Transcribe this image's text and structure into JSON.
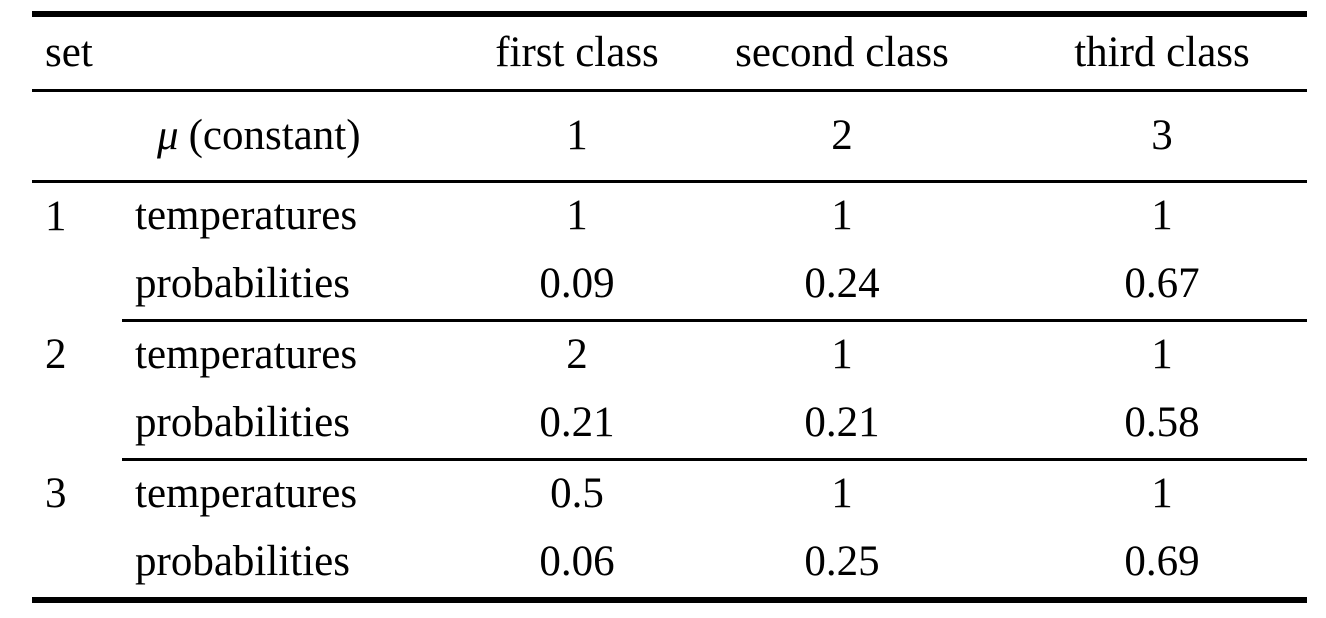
{
  "table": {
    "header": {
      "set": "set",
      "col2": "",
      "first_class": "first class",
      "second_class": "second class",
      "third_class": "third class"
    },
    "mu_row": {
      "symbol": "μ",
      "label": "(constant)",
      "values": [
        "1",
        "2",
        "3"
      ]
    },
    "row_labels": {
      "temperatures": "temperatures",
      "probabilities": "probabilities"
    },
    "sets": [
      {
        "id": "1",
        "temperatures": [
          "1",
          "1",
          "1"
        ],
        "probabilities": [
          "0.09",
          "0.24",
          "0.67"
        ]
      },
      {
        "id": "2",
        "temperatures": [
          "2",
          "1",
          "1"
        ],
        "probabilities": [
          "0.21",
          "0.21",
          "0.58"
        ]
      },
      {
        "id": "3",
        "temperatures": [
          "0.5",
          "1",
          "1"
        ],
        "probabilities": [
          "0.06",
          "0.25",
          "0.69"
        ]
      }
    ]
  },
  "colors": {
    "rule": "#000000",
    "text": "#000000",
    "background": "#ffffff"
  },
  "chart_data": {
    "type": "table",
    "columns": [
      "set",
      "",
      "first class",
      "second class",
      "third class"
    ],
    "rows": [
      [
        "",
        "μ (constant)",
        "1",
        "2",
        "3"
      ],
      [
        "1",
        "temperatures",
        "1",
        "1",
        "1"
      ],
      [
        "",
        "probabilities",
        "0.09",
        "0.24",
        "0.67"
      ],
      [
        "2",
        "temperatures",
        "2",
        "1",
        "1"
      ],
      [
        "",
        "probabilities",
        "0.21",
        "0.21",
        "0.58"
      ],
      [
        "3",
        "temperatures",
        "0.5",
        "1",
        "1"
      ],
      [
        "",
        "probabilities",
        "0.06",
        "0.25",
        "0.69"
      ]
    ]
  }
}
